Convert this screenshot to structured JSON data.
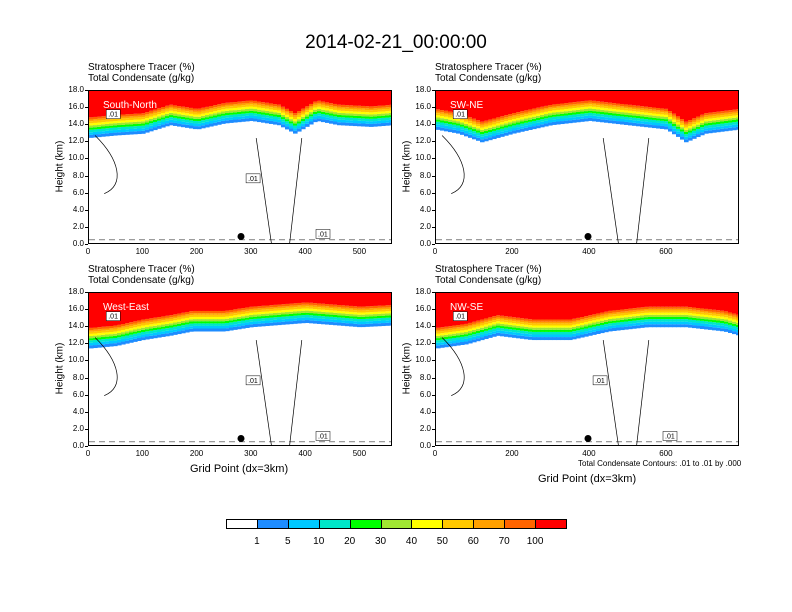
{
  "title": "2014-02-21_00:00:00",
  "panel_header": {
    "line1": "Stratosphere Tracer   (%)",
    "line2": "Total Condensate   (g/kg)"
  },
  "y_axis_label": "Height (km)",
  "x_axis_label": "Grid Point (dx=3km)",
  "contour_note": "Total Condensate Contours: .01 to .01 by .000",
  "y_ticks": [
    "0.0",
    "2.0",
    "4.0",
    "6.0",
    "8.0",
    "10.0",
    "12.0",
    "14.0",
    "16.0",
    "18.0"
  ],
  "colorbar": {
    "colors": [
      "#ffffff",
      "#1e8cff",
      "#00c8ff",
      "#00e6c8",
      "#00ff00",
      "#a0e632",
      "#ffff00",
      "#ffc800",
      "#ffa000",
      "#ff6400",
      "#ff0000"
    ],
    "labels": [
      "1",
      "5",
      "10",
      "20",
      "30",
      "40",
      "50",
      "60",
      "70",
      "100"
    ]
  },
  "chart_data": [
    {
      "type": "heatmap",
      "name": "South-North",
      "title": "Stratosphere Tracer (%) / Total Condensate (g/kg)",
      "ylabel": "Height (km)",
      "xlabel": "",
      "xlim": [
        0,
        560
      ],
      "ylim": [
        0,
        18
      ],
      "x_ticks": [
        "0",
        "100",
        "200",
        "300",
        "400",
        "500"
      ],
      "x_tick_values": [
        0,
        100,
        200,
        300,
        400,
        500
      ],
      "tracer_base_km": {
        "x": [
          0,
          50,
          100,
          150,
          200,
          250,
          300,
          350,
          380,
          420,
          460,
          520,
          560
        ],
        "y": [
          12.5,
          12.8,
          13.0,
          14.0,
          13.5,
          14.2,
          14.5,
          14.0,
          13.0,
          14.5,
          14.0,
          13.8,
          14.0
        ]
      },
      "contour_labels": [
        ".01",
        ".01",
        ".01"
      ],
      "marker": {
        "x": 280,
        "y": 1.0
      }
    },
    {
      "type": "heatmap",
      "name": "SW-NE",
      "title": "Stratosphere Tracer (%) / Total Condensate (g/kg)",
      "ylabel": "Height (km)",
      "xlabel": "",
      "xlim": [
        0,
        790
      ],
      "ylim": [
        0,
        18
      ],
      "x_ticks": [
        "0",
        "200",
        "400",
        "600"
      ],
      "x_tick_values": [
        0,
        200,
        400,
        600
      ],
      "tracer_base_km": {
        "x": [
          0,
          60,
          120,
          200,
          300,
          400,
          500,
          600,
          650,
          700,
          790
        ],
        "y": [
          13.5,
          13.0,
          12.0,
          13.0,
          14.0,
          14.5,
          14.0,
          13.5,
          12.0,
          13.0,
          13.5
        ]
      },
      "contour_labels": [
        ".01"
      ],
      "marker": {
        "x": 395,
        "y": 1.0
      }
    },
    {
      "type": "heatmap",
      "name": "West-East",
      "title": "Stratosphere Tracer (%) / Total Condensate (g/kg)",
      "ylabel": "Height (km)",
      "xlabel": "Grid Point (dx=3km)",
      "xlim": [
        0,
        560
      ],
      "ylim": [
        0,
        18
      ],
      "x_ticks": [
        "0",
        "100",
        "200",
        "300",
        "400",
        "500"
      ],
      "x_tick_values": [
        0,
        100,
        200,
        300,
        400,
        500
      ],
      "tracer_base_km": {
        "x": [
          0,
          50,
          100,
          150,
          190,
          250,
          300,
          400,
          500,
          560
        ],
        "y": [
          11.5,
          11.8,
          12.5,
          13.0,
          13.5,
          13.5,
          14.0,
          14.5,
          14.0,
          14.2
        ]
      },
      "contour_labels": [
        ".01",
        ".01",
        ".01"
      ],
      "marker": {
        "x": 280,
        "y": 1.0
      }
    },
    {
      "type": "heatmap",
      "name": "NW-SE",
      "title": "Stratosphere Tracer (%) / Total Condensate (g/kg)",
      "ylabel": "Height (km)",
      "xlabel": "Grid Point (dx=3km)",
      "xlim": [
        0,
        790
      ],
      "ylim": [
        0,
        18
      ],
      "x_ticks": [
        "0",
        "200",
        "400",
        "600"
      ],
      "x_tick_values": [
        0,
        200,
        400,
        600
      ],
      "tracer_base_km": {
        "x": [
          0,
          80,
          160,
          250,
          350,
          450,
          550,
          650,
          750,
          790
        ],
        "y": [
          11.5,
          12.0,
          13.0,
          12.5,
          12.5,
          13.5,
          14.0,
          14.0,
          13.5,
          13.0
        ]
      },
      "contour_labels": [
        ".01",
        ".01",
        ".01"
      ],
      "marker": {
        "x": 395,
        "y": 1.0
      }
    }
  ]
}
